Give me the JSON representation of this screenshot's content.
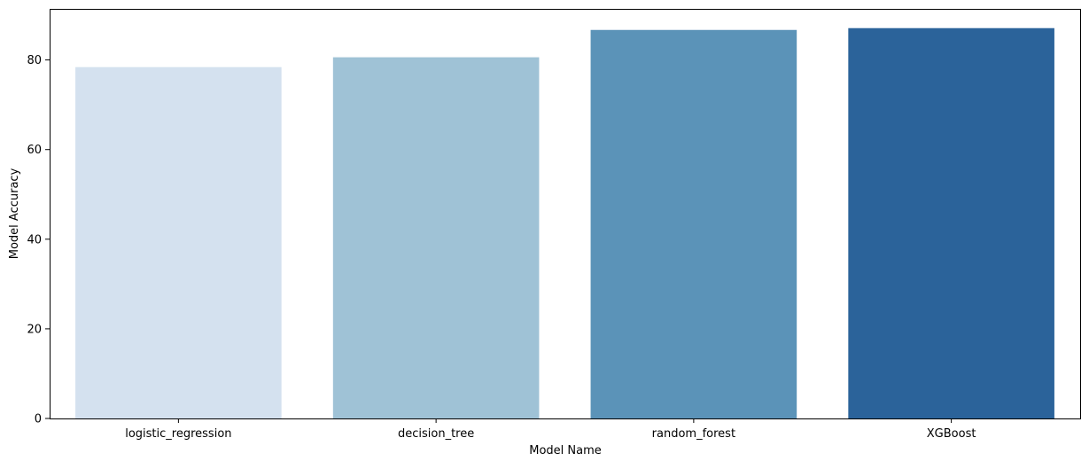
{
  "chart_data": {
    "type": "bar",
    "categories": [
      "logistic_regression",
      "decision_tree",
      "random_forest",
      "XGBoost"
    ],
    "values": [
      78.4,
      80.6,
      86.7,
      87.1
    ],
    "colors": [
      "#d4e1ef",
      "#9fc2d6",
      "#5b93b8",
      "#2b639a"
    ],
    "title": "",
    "xlabel": "Model Name",
    "ylabel": "Model Accuracy",
    "ylim": [
      0,
      91.4
    ],
    "yticks": [
      0,
      20,
      40,
      60,
      80
    ],
    "ytick_labels": [
      "0",
      "20",
      "40",
      "60",
      "80"
    ],
    "grid": false,
    "legend": "none"
  }
}
